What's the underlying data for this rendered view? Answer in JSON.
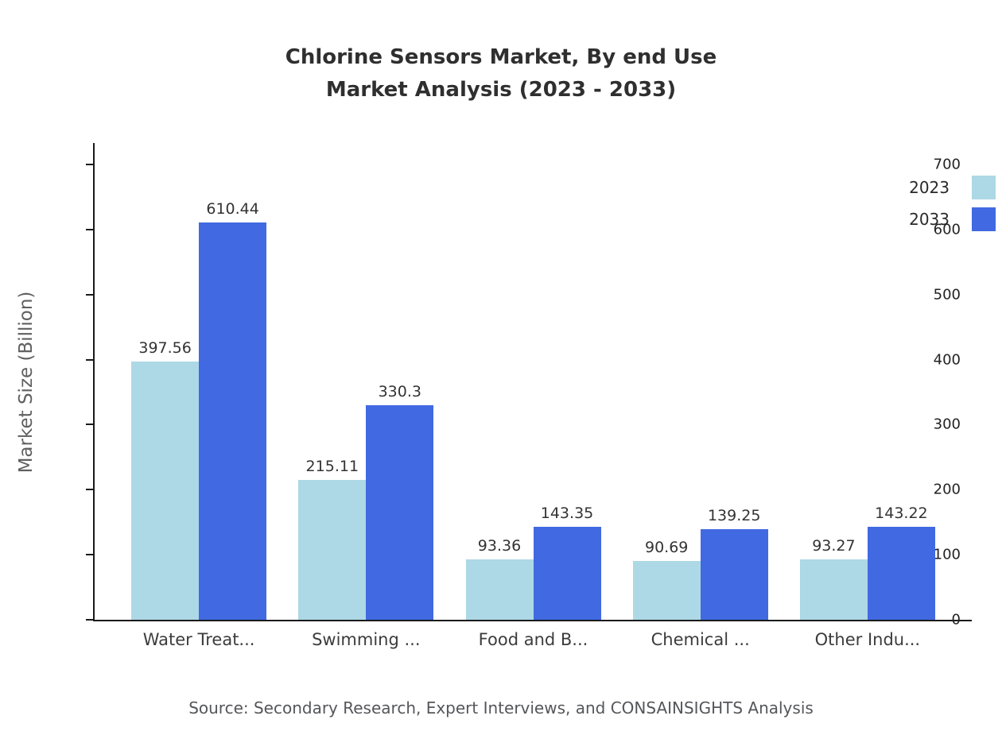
{
  "title": {
    "line1": "Chlorine Sensors Market, By end Use",
    "line2": "Market Analysis (2023 - 2033)"
  },
  "source": "Source: Secondary Research, Expert Interviews, and CONSAINSIGHTS Analysis",
  "chart_data": {
    "type": "bar",
    "title": "Chlorine Sensors Market, By end Use Market Analysis (2023 - 2033)",
    "categories": [
      "Water Treat...",
      "Swimming ...",
      "Food and B...",
      "Chemical ...",
      "Other Indu..."
    ],
    "series": [
      {
        "name": "2023",
        "color": "#add8e6",
        "values": [
          397.56,
          215.11,
          93.36,
          90.69,
          93.27
        ]
      },
      {
        "name": "2033",
        "color": "#4169e1",
        "values": [
          610.44,
          330.3,
          143.35,
          139.25,
          143.22
        ]
      }
    ],
    "xlabel": "",
    "ylabel": "Market Size (Billion)",
    "ylim": [
      0,
      733
    ],
    "yticks": [
      0,
      100,
      200,
      300,
      400,
      500,
      600,
      700
    ],
    "grid": false,
    "legend_position": "top-right"
  }
}
